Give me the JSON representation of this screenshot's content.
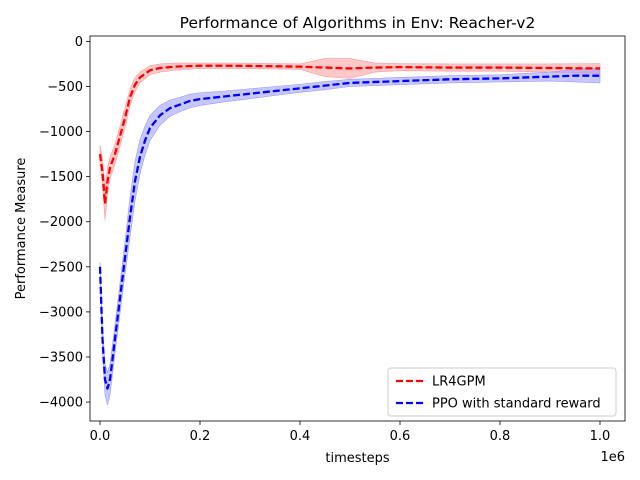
{
  "chart_data": {
    "type": "line",
    "title": "Performance of Algorithms in Env: Reacher-v2",
    "xlabel": "timesteps",
    "ylabel": "Performance Measure",
    "x_offset_label": "1e6",
    "xlim": [
      -0.02,
      1.05
    ],
    "ylim": [
      -4210,
      60
    ],
    "xticks": [
      0.0,
      0.2,
      0.4,
      0.6,
      0.8,
      1.0
    ],
    "xtick_labels": [
      "0.0",
      "0.2",
      "0.4",
      "0.6",
      "0.8",
      "1.0"
    ],
    "yticks": [
      0,
      -500,
      -1000,
      -1500,
      -2000,
      -2500,
      -3000,
      -3500,
      -4000
    ],
    "ytick_labels": [
      "0",
      "−500",
      "−1000",
      "−1500",
      "−2000",
      "−2500",
      "−3000",
      "−3500",
      "−4000"
    ],
    "grid": false,
    "legend_position": "lower-right",
    "series": [
      {
        "name": "LR4GPM",
        "color": "#ff0000",
        "band_color": "#ff9999",
        "x": [
          0.0,
          0.005,
          0.01,
          0.015,
          0.02,
          0.03,
          0.04,
          0.05,
          0.06,
          0.07,
          0.08,
          0.1,
          0.12,
          0.15,
          0.2,
          0.25,
          0.3,
          0.35,
          0.4,
          0.45,
          0.5,
          0.55,
          0.6,
          0.7,
          0.8,
          0.9,
          1.0
        ],
        "y": [
          -1250,
          -1450,
          -1800,
          -1550,
          -1400,
          -1250,
          -1050,
          -850,
          -620,
          -480,
          -400,
          -320,
          -295,
          -280,
          -270,
          -270,
          -272,
          -276,
          -280,
          -290,
          -300,
          -290,
          -285,
          -290,
          -290,
          -295,
          -300
        ],
        "band": [
          100,
          150,
          180,
          150,
          120,
          110,
          110,
          110,
          90,
          80,
          60,
          50,
          45,
          40,
          30,
          30,
          30,
          30,
          30,
          100,
          110,
          50,
          40,
          40,
          40,
          45,
          55
        ]
      },
      {
        "name": "PPO with standard reward",
        "color": "#0000ff",
        "band_color": "#9999ff",
        "x": [
          0.0,
          0.005,
          0.01,
          0.015,
          0.02,
          0.03,
          0.04,
          0.05,
          0.06,
          0.07,
          0.08,
          0.09,
          0.1,
          0.12,
          0.14,
          0.16,
          0.18,
          0.2,
          0.25,
          0.3,
          0.35,
          0.4,
          0.45,
          0.5,
          0.6,
          0.7,
          0.8,
          0.9,
          0.95,
          1.0
        ],
        "y": [
          -2500,
          -3300,
          -3750,
          -3850,
          -3750,
          -3300,
          -2850,
          -2400,
          -1950,
          -1550,
          -1280,
          -1100,
          -960,
          -820,
          -740,
          -700,
          -660,
          -640,
          -610,
          -580,
          -550,
          -520,
          -490,
          -460,
          -440,
          -420,
          -410,
          -390,
          -380,
          -380
        ],
        "band": [
          50,
          120,
          170,
          180,
          170,
          160,
          170,
          180,
          220,
          220,
          190,
          160,
          140,
          110,
          90,
          80,
          75,
          70,
          60,
          55,
          50,
          45,
          45,
          40,
          40,
          40,
          40,
          50,
          70,
          80
        ]
      }
    ]
  }
}
